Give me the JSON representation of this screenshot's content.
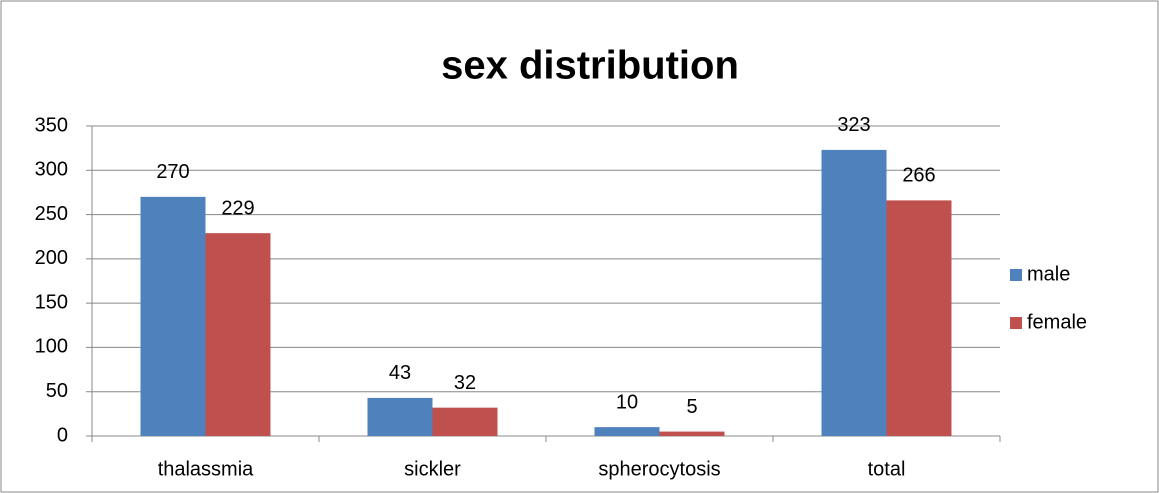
{
  "chart_data": {
    "type": "bar",
    "title": "sex distribution",
    "categories": [
      "thalassmia",
      "sickler",
      "spherocytosis",
      "total"
    ],
    "series": [
      {
        "name": "male",
        "color": "#4f81bd",
        "values": [
          270,
          43,
          10,
          323
        ]
      },
      {
        "name": "female",
        "color": "#c0504d",
        "values": [
          229,
          32,
          5,
          266
        ]
      }
    ],
    "ylim": [
      0,
      350
    ],
    "yticks": [
      0,
      50,
      100,
      150,
      200,
      250,
      300,
      350
    ],
    "grid": true,
    "legend": "right"
  }
}
